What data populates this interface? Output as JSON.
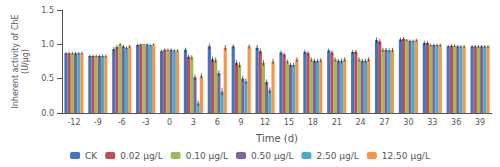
{
  "chart_data": {
    "type": "bar",
    "xlabel": "Time (d)",
    "ylabel": "Inherent activity of ChE\n(U/μg)",
    "categories": [
      "-12",
      "-9",
      "-6",
      "-3",
      "0",
      "3",
      "6",
      "9",
      "12",
      "15",
      "18",
      "21",
      "24",
      "27",
      "30",
      "33",
      "36",
      "39"
    ],
    "series": [
      {
        "name": "CK",
        "color": "#4472C4",
        "values": [
          0.87,
          0.83,
          0.93,
          0.99,
          0.9,
          0.92,
          0.97,
          0.97,
          0.95,
          0.88,
          0.89,
          0.91,
          0.89,
          1.06,
          1.07,
          1.02,
          0.97,
          0.97
        ],
        "errors": [
          0.02,
          0.02,
          0.03,
          0.02,
          0.02,
          0.03,
          0.04,
          0.03,
          0.04,
          0.03,
          0.03,
          0.03,
          0.03,
          0.04,
          0.03,
          0.03,
          0.02,
          0.02
        ]
      },
      {
        "name": "0.02 μg/L",
        "color": "#C0504D",
        "values": [
          0.87,
          0.83,
          0.96,
          1.0,
          0.92,
          0.82,
          0.78,
          0.73,
          0.9,
          0.85,
          0.87,
          0.88,
          0.89,
          1.04,
          1.08,
          1.02,
          0.98,
          0.97
        ],
        "errors": [
          0.02,
          0.02,
          0.03,
          0.01,
          0.02,
          0.03,
          0.04,
          0.04,
          0.04,
          0.03,
          0.03,
          0.03,
          0.03,
          0.04,
          0.03,
          0.03,
          0.02,
          0.02
        ]
      },
      {
        "name": "0.10 μg/L",
        "color": "#9BBB59",
        "values": [
          0.87,
          0.83,
          1.0,
          1.0,
          0.92,
          0.81,
          0.77,
          0.7,
          0.73,
          0.75,
          0.78,
          0.78,
          0.78,
          0.92,
          1.06,
          0.99,
          0.98,
          0.97
        ],
        "errors": [
          0.02,
          0.02,
          0.02,
          0.01,
          0.02,
          0.03,
          0.04,
          0.04,
          0.04,
          0.03,
          0.03,
          0.03,
          0.03,
          0.03,
          0.02,
          0.02,
          0.02,
          0.02
        ]
      },
      {
        "name": "0.50 μg/L",
        "color": "#8064A2",
        "values": [
          0.87,
          0.83,
          0.97,
          1.0,
          0.92,
          0.52,
          0.58,
          0.5,
          0.45,
          0.7,
          0.76,
          0.76,
          0.76,
          0.92,
          1.05,
          0.99,
          0.97,
          0.97
        ],
        "errors": [
          0.02,
          0.02,
          0.02,
          0.01,
          0.02,
          0.04,
          0.04,
          0.04,
          0.04,
          0.03,
          0.03,
          0.03,
          0.03,
          0.03,
          0.02,
          0.02,
          0.02,
          0.02
        ]
      },
      {
        "name": "2.50 μg/L",
        "color": "#4BACC6",
        "values": [
          0.87,
          0.83,
          0.95,
          0.99,
          0.91,
          0.14,
          0.31,
          0.46,
          0.33,
          0.7,
          0.76,
          0.76,
          0.76,
          0.91,
          1.05,
          0.99,
          0.97,
          0.97
        ],
        "errors": [
          0.02,
          0.02,
          0.02,
          0.01,
          0.02,
          0.04,
          0.05,
          0.04,
          0.04,
          0.03,
          0.03,
          0.03,
          0.03,
          0.03,
          0.02,
          0.02,
          0.02,
          0.02
        ]
      },
      {
        "name": "12.50 μg/L",
        "color": "#F79646",
        "values": [
          0.87,
          0.83,
          0.97,
          1.0,
          0.91,
          0.54,
          0.95,
          0.97,
          0.75,
          0.78,
          0.77,
          0.78,
          0.78,
          0.92,
          1.06,
          0.99,
          0.97,
          0.97
        ],
        "errors": [
          0.02,
          0.02,
          0.02,
          0.01,
          0.02,
          0.04,
          0.04,
          0.03,
          0.04,
          0.03,
          0.03,
          0.03,
          0.03,
          0.03,
          0.02,
          0.02,
          0.02,
          0.02
        ]
      }
    ],
    "ylim": [
      0.0,
      1.5
    ],
    "yticks": [
      {
        "value": 0.0,
        "label": "0.0"
      },
      0.5,
      {
        "value": 1.0,
        "label": "1.0"
      },
      1.5
    ],
    "grid": false,
    "legend": "bottom"
  }
}
